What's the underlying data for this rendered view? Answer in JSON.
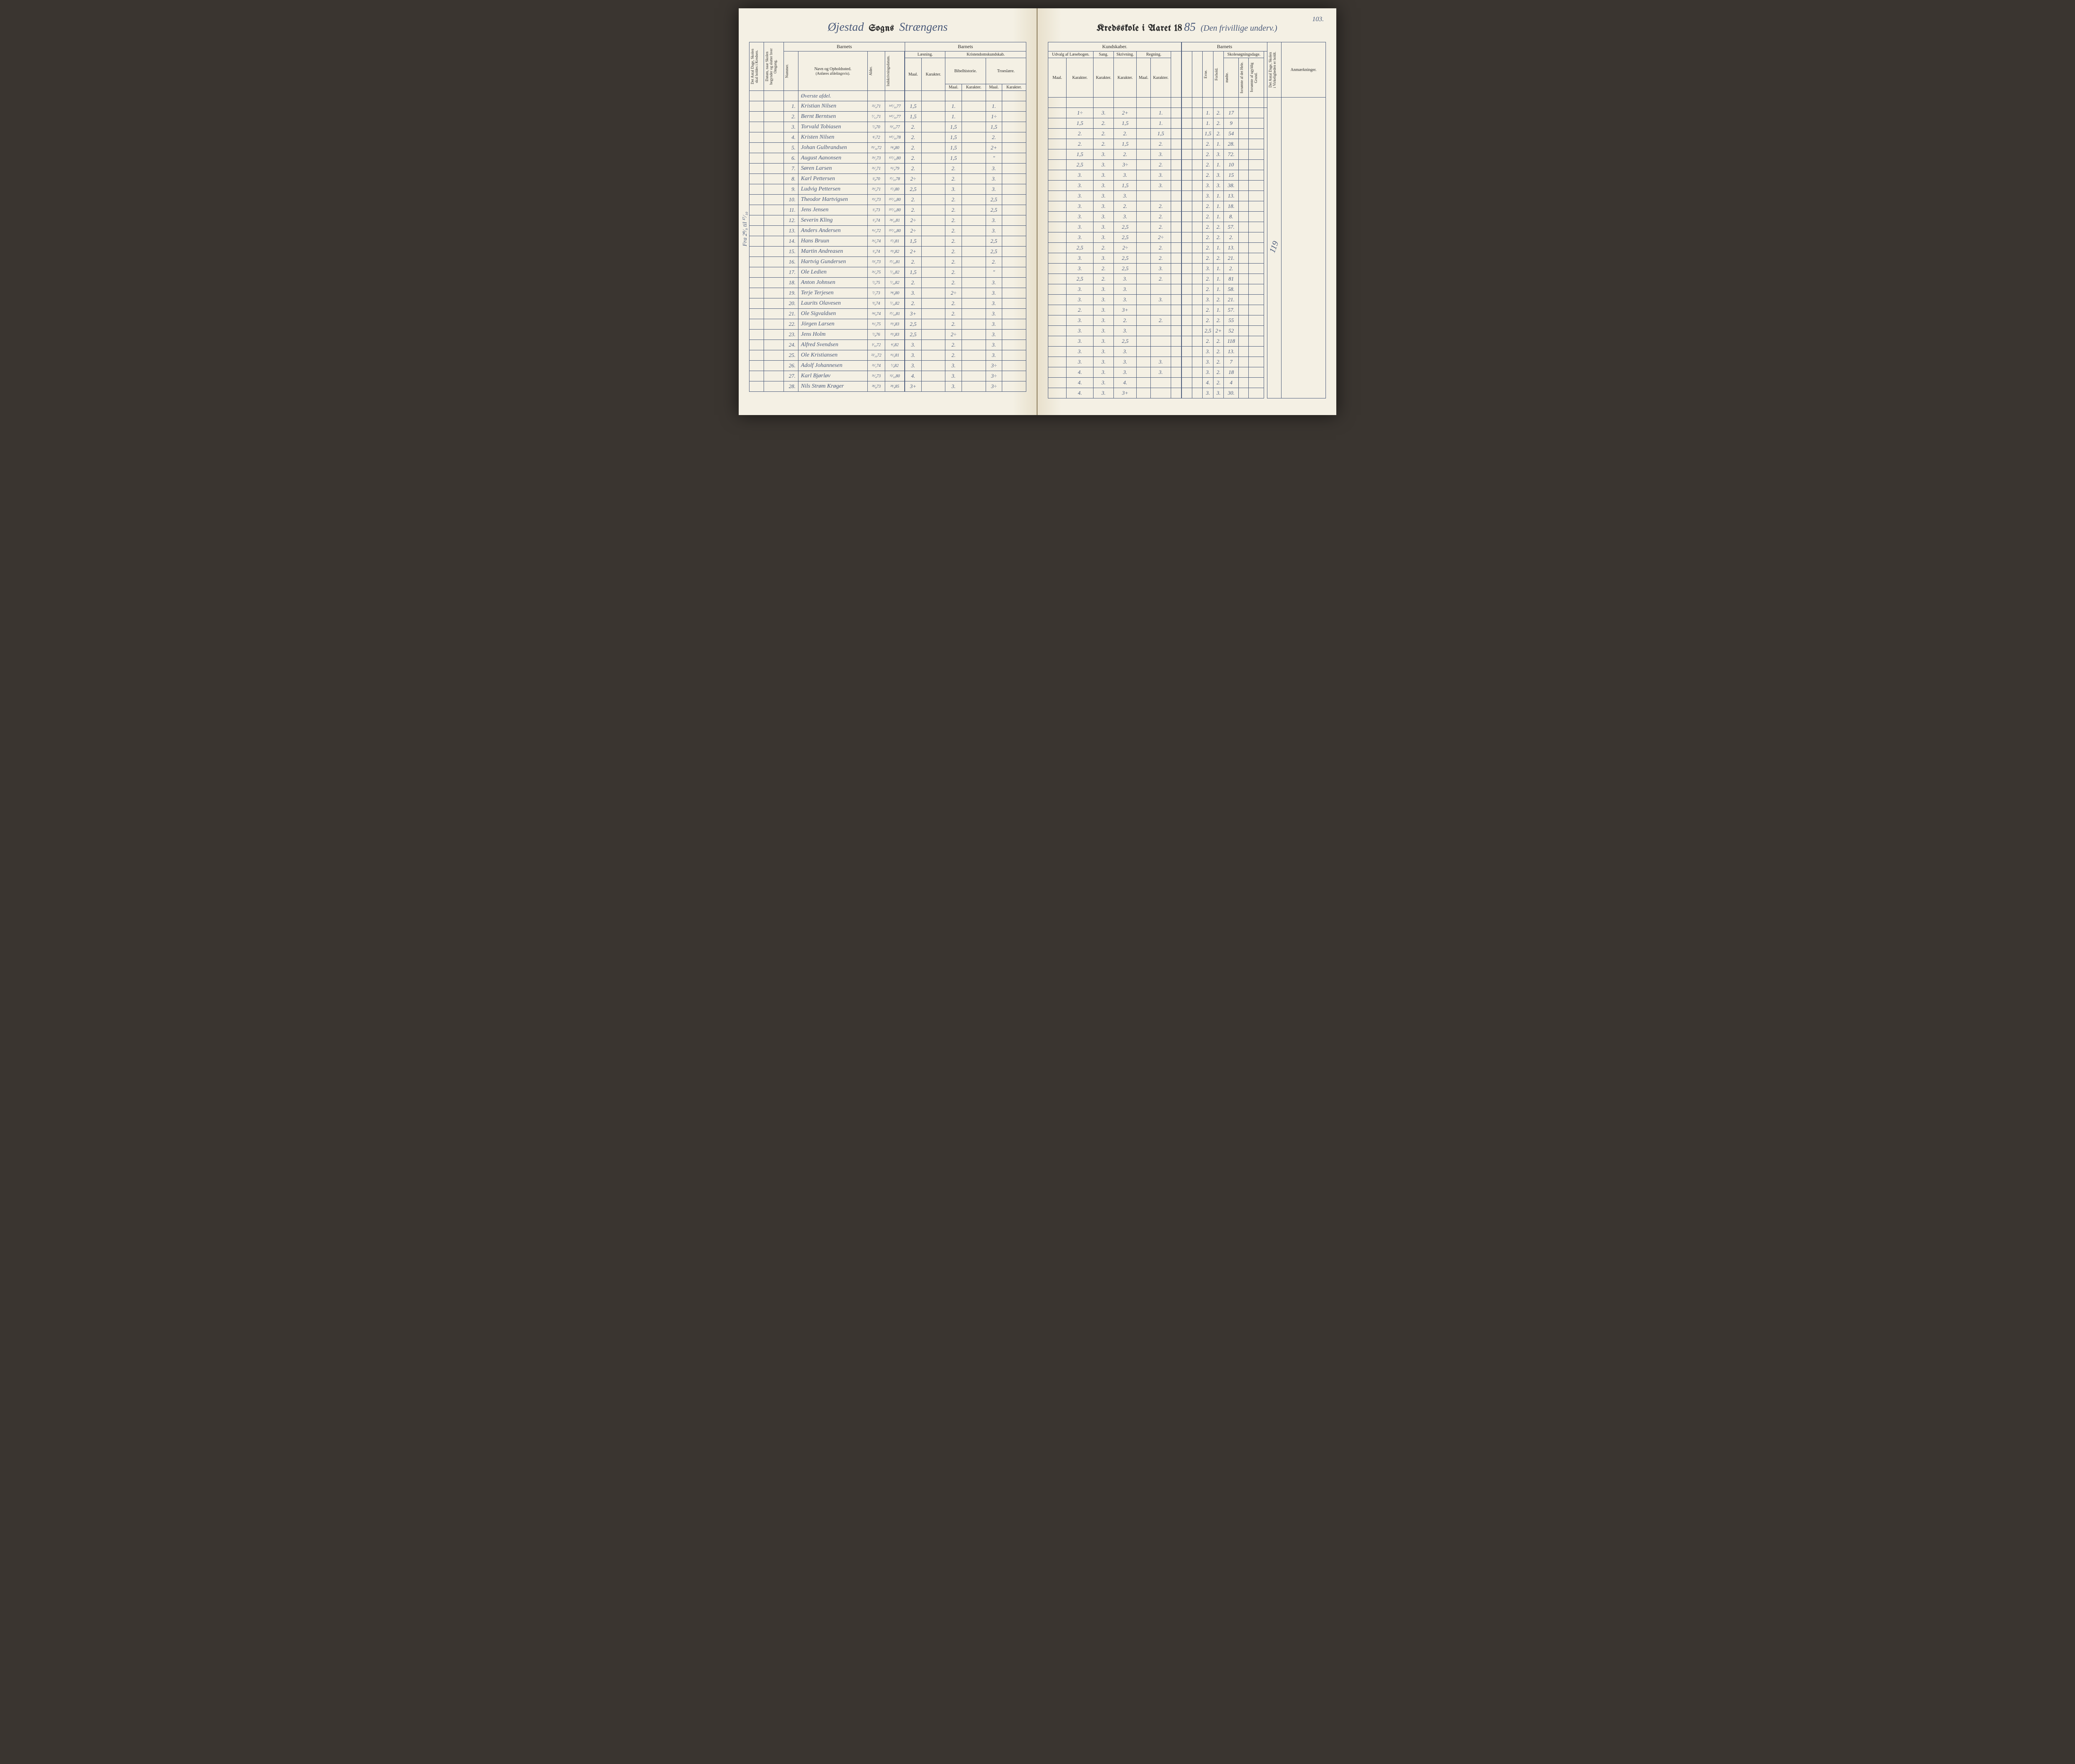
{
  "pageNumber": "103.",
  "left": {
    "titleScript1": "Øjestad",
    "titleBlack": "Sogns",
    "titleScript2": "Strængens",
    "sideNote": "Fra 2⁸⁄₉ til ¹⁷⁄₁₀",
    "headers": {
      "barnets": "Barnets",
      "antalDage": "Det Antal Dage, Skolen skal holdes i Kredsen.",
      "datum": "Datum, naar Skolen begynder og slutter hver Omgang.",
      "nummer": "Nummer.",
      "navn": "Navn og Opholdssted.",
      "navnSub": "(Anføres afdelingsvis).",
      "alder": "Alder.",
      "indskriv": "Indskrivningsdatum.",
      "laesning": "Læsning.",
      "kristendom": "Kristendomskundskab.",
      "bibel": "Bibelhistorie.",
      "troes": "Troeslære.",
      "maal": "Maal.",
      "karakter": "Karakter."
    },
    "sectionLabel": "Øverste afdel.",
    "rows": [
      {
        "n": "1.",
        "name": "Kristian Nilsen",
        "a": "²⁵⁄₄71",
        "i": "¹⁴⁷⁄₁₀77",
        "lm": "1,5",
        "lk": "",
        "bm": "1.",
        "bk": "",
        "tm": "1.",
        "tk": ""
      },
      {
        "n": "2.",
        "name": "Bernt Berntsen",
        "a": "⁷⁄₁₂71",
        "i": "¹⁴⁷⁄₁₀77",
        "lm": "1,5",
        "lk": "",
        "bm": "1.",
        "bk": "",
        "tm": "1÷",
        "tk": ""
      },
      {
        "n": "3.",
        "name": "Torvald Tobiasen",
        "a": "⁷⁄₉70",
        "i": "¹³⁄₁₀77",
        "lm": "2.",
        "lk": "",
        "bm": "1,5",
        "bk": "",
        "tm": "1,5",
        "tk": ""
      },
      {
        "n": "4.",
        "name": "Kristen Nilsen",
        "a": "⁴⁄₇72",
        "i": "¹⁴⁷⁄₁₀78",
        "lm": "2.",
        "lk": "",
        "bm": "1,5",
        "bk": "",
        "tm": "2.",
        "tk": ""
      },
      {
        "n": "5.",
        "name": "Johan Gulbrandsen",
        "a": "²⁹⁄₁₆72",
        "i": "²⁴⁄₈80",
        "lm": "2.",
        "lk": "",
        "bm": "1,5",
        "bk": "",
        "tm": "2+",
        "tk": ""
      },
      {
        "n": "6.",
        "name": "August Aanonsen",
        "a": "²⁹⁄₂73",
        "i": "¹⁵⁷⁄₁₀80",
        "lm": "2.",
        "lk": "",
        "bm": "1,5",
        "bk": "",
        "tm": "\"",
        "tk": ""
      },
      {
        "n": "7.",
        "name": "Søren Larsen",
        "a": "²⁶⁄₂71",
        "i": "¹⁶⁄₄79",
        "lm": "2.",
        "lk": "",
        "bm": "2.",
        "bk": "",
        "tm": "3.",
        "tk": ""
      },
      {
        "n": "8.",
        "name": "Karl Pettersen",
        "a": "²⁄₈70",
        "i": "¹⁷⁄₁₀78",
        "lm": "2÷",
        "lk": "",
        "bm": "2.",
        "bk": "",
        "tm": "3.",
        "tk": ""
      },
      {
        "n": "9.",
        "name": "Ludvig Pettersen",
        "a": "²⁹⁄₄71",
        "i": "¹⁷⁄₅80",
        "lm": "2,5",
        "lk": "",
        "bm": "3.",
        "bk": "",
        "tm": "3.",
        "tk": ""
      },
      {
        "n": "10.",
        "name": "Theodor Hartvigsen",
        "a": "¹⁹⁄₄73",
        "i": "²⁵⁷⁄₁₀80",
        "lm": "2.",
        "lk": "",
        "bm": "2.",
        "bk": "",
        "tm": "2,5",
        "tk": ""
      },
      {
        "n": "11.",
        "name": "Jens Jensen",
        "a": "¹⁄₅73",
        "i": "²⁵⁷⁄₁₀80",
        "lm": "2.",
        "lk": "",
        "bm": "2.",
        "bk": "",
        "tm": "2,5",
        "tk": ""
      },
      {
        "n": "12.",
        "name": "Severin Kling",
        "a": "¹⁄₃74",
        "i": "²⁴⁄₁₀81",
        "lm": "2÷",
        "lk": "",
        "bm": "2.",
        "bk": "",
        "tm": "3.",
        "tk": ""
      },
      {
        "n": "13.",
        "name": "Anders Andersen",
        "a": "¹⁶⁄₃72",
        "i": "²⁵⁷⁄₁₀80",
        "lm": "2÷",
        "lk": "",
        "bm": "2.",
        "bk": "",
        "tm": "3.",
        "tk": ""
      },
      {
        "n": "14.",
        "name": "Hans Bruun",
        "a": "²⁶⁄₆74",
        "i": "¹⁷⁄₅81",
        "lm": "1,5",
        "lk": "",
        "bm": "2.",
        "bk": "",
        "tm": "2,5",
        "tk": ""
      },
      {
        "n": "15.",
        "name": "Martin Andreasen",
        "a": "¹⁄₄74",
        "i": "¹⁹⁄₄82",
        "lm": "2+",
        "lk": "",
        "bm": "2.",
        "bk": "",
        "tm": "2,5",
        "tk": ""
      },
      {
        "n": "16.",
        "name": "Hartvig Gundersen",
        "a": "²³⁄₃73",
        "i": "²⁷⁄₁₀81",
        "lm": "2.",
        "lk": "",
        "bm": "2.",
        "bk": "",
        "tm": "2.",
        "tk": ""
      },
      {
        "n": "17.",
        "name": "Ole Ledien",
        "a": "²⁶⁄₄75",
        "i": "⁷⁄₁₀82",
        "lm": "1,5",
        "lk": "",
        "bm": "2.",
        "bk": "",
        "tm": "\"",
        "tk": ""
      },
      {
        "n": "18.",
        "name": "Anton Johnsen",
        "a": "⁷⁄₆75",
        "i": "⁷⁄₁₀82",
        "lm": "2.",
        "lk": "",
        "bm": "2.",
        "bk": "",
        "tm": "3.",
        "tk": ""
      },
      {
        "n": "19.",
        "name": "Terje Terjesen",
        "a": "⁷⁄₂73",
        "i": "³⁴⁄₈80",
        "lm": "3.",
        "lk": "",
        "bm": "2÷",
        "bk": "",
        "tm": "3.",
        "tk": ""
      },
      {
        "n": "20.",
        "name": "Laurits Olavesen",
        "a": "⁹⁄₆74",
        "i": "⁷⁄₁₀82",
        "lm": "2.",
        "lk": "",
        "bm": "2.",
        "bk": "",
        "tm": "3.",
        "tk": ""
      },
      {
        "n": "21.",
        "name": "Ole Sigvaldsen",
        "a": "²⁴⁄₉74",
        "i": "²⁷⁄₁₀81",
        "lm": "3+",
        "lk": "",
        "bm": "2.",
        "bk": "",
        "tm": "3.",
        "tk": ""
      },
      {
        "n": "22.",
        "name": "Jörgen Larsen",
        "a": "¹⁶⁄₃75",
        "i": "¹⁹⁄₄83",
        "lm": "2,5",
        "lk": "",
        "bm": "2.",
        "bk": "",
        "tm": "3.",
        "tk": ""
      },
      {
        "n": "23.",
        "name": "Jens Holm",
        "a": "⁷⁄₈76",
        "i": "¹⁹⁄₄83",
        "lm": "2,5",
        "lk": "",
        "bm": "2÷",
        "bk": "",
        "tm": "3.",
        "tk": ""
      },
      {
        "n": "24.",
        "name": "Alfred Svendsen",
        "a": "³⁄₁₀72",
        "i": "⁴⁄₃82",
        "lm": "3.",
        "lk": "",
        "bm": "2.",
        "bk": "",
        "tm": "3.",
        "tk": ""
      },
      {
        "n": "25.",
        "name": "Ole Kristiansen",
        "a": "²²⁄₁₀72",
        "i": "¹⁶⁄₆81",
        "lm": "3.",
        "lk": "",
        "bm": "2.",
        "bk": "",
        "tm": "3.",
        "tk": ""
      },
      {
        "n": "26.",
        "name": "Adolf Johannesen",
        "a": "²¹⁄₁74",
        "i": "⁷⁄₄82",
        "lm": "3.",
        "lk": "",
        "bm": "3.",
        "bk": "",
        "tm": "3÷",
        "tk": ""
      },
      {
        "n": "27.",
        "name": "Karl Bjørløv",
        "a": "²⁶⁄₄73",
        "i": "¹²⁄₁₀80",
        "lm": "4.",
        "lk": "",
        "bm": "3.",
        "bk": "",
        "tm": "3÷",
        "tk": ""
      },
      {
        "n": "28.",
        "name": "Nils Strøm Krøger",
        "a": "²⁸⁄₈73",
        "i": "²⁸⁄₄85",
        "lm": "3+",
        "lk": "",
        "bm": "3.",
        "bk": "",
        "tm": "3÷",
        "tk": ""
      }
    ]
  },
  "right": {
    "titleBlack": "Kredsskole i Aaret 18",
    "titleScript1": "85",
    "titleScript2": "(Den frivillige underv.)",
    "headers": {
      "kundskaber": "Kundskaber.",
      "barnets": "Barnets",
      "udvalg": "Udvalg af Læsebogen.",
      "sang": "Sang.",
      "skriv": "Skrivning.",
      "regning": "Regning.",
      "skolesog": "Skolesøgningsdage.",
      "maal": "Maal.",
      "karakter": "Karakter.",
      "evne": "Evne.",
      "forhold": "Forhold.",
      "modte": "mødte.",
      "forsH": "forsømte af det Hele.",
      "forsU": "forsømte af ugyldig Grund.",
      "antalHoldt": "Det Antal Dage, Skolen i Virkeligheden er holdt.",
      "anm": "Anmærkninger."
    },
    "anmNote": "119",
    "rows": [
      {
        "um": "",
        "uk": "1÷",
        "sg": "3.",
        "sk": "2+",
        "rm": "",
        "rk": "1.",
        "ev": "1.",
        "fo": "2.",
        "mo": "17",
        "fh": "",
        "fu": ""
      },
      {
        "um": "",
        "uk": "1,5",
        "sg": "2.",
        "sk": "1,5",
        "rm": "",
        "rk": "1.",
        "ev": "1.",
        "fo": "2.",
        "mo": "9",
        "fh": "",
        "fu": ""
      },
      {
        "um": "",
        "uk": "2.",
        "sg": "2.",
        "sk": "2.",
        "rm": "",
        "rk": "1,5",
        "ev": "1,5",
        "fo": "2.",
        "mo": "54",
        "fh": "",
        "fu": ""
      },
      {
        "um": "",
        "uk": "2.",
        "sg": "2.",
        "sk": "1,5",
        "rm": "",
        "rk": "2.",
        "ev": "2.",
        "fo": "1.",
        "mo": "28.",
        "fh": "",
        "fu": ""
      },
      {
        "um": "",
        "uk": "1,5",
        "sg": "3.",
        "sk": "2.",
        "rm": "",
        "rk": "3.",
        "ev": "2.",
        "fo": "3.",
        "mo": "72.",
        "fh": "",
        "fu": ""
      },
      {
        "um": "",
        "uk": "2,5",
        "sg": "3.",
        "sk": "3÷",
        "rm": "",
        "rk": "2.",
        "ev": "2.",
        "fo": "1.",
        "mo": "10",
        "fh": "",
        "fu": ""
      },
      {
        "um": "",
        "uk": "3.",
        "sg": "3.",
        "sk": "3.",
        "rm": "",
        "rk": "3.",
        "ev": "2.",
        "fo": "3.",
        "mo": "15",
        "fh": "",
        "fu": ""
      },
      {
        "um": "",
        "uk": "3.",
        "sg": "3.",
        "sk": "1,5",
        "rm": "",
        "rk": "3.",
        "ev": "3.",
        "fo": "3.",
        "mo": "38.",
        "fh": "",
        "fu": ""
      },
      {
        "um": "",
        "uk": "3.",
        "sg": "3.",
        "sk": "3.",
        "rm": "",
        "rk": "",
        "ev": "3.",
        "fo": "1.",
        "mo": "13.",
        "fh": "",
        "fu": ""
      },
      {
        "um": "",
        "uk": "3.",
        "sg": "3.",
        "sk": "2.",
        "rm": "",
        "rk": "2.",
        "ev": "2.",
        "fo": "1.",
        "mo": "18.",
        "fh": "",
        "fu": ""
      },
      {
        "um": "",
        "uk": "3.",
        "sg": "3.",
        "sk": "3.",
        "rm": "",
        "rk": "2.",
        "ev": "2.",
        "fo": "1.",
        "mo": "8.",
        "fh": "",
        "fu": ""
      },
      {
        "um": "",
        "uk": "3.",
        "sg": "3.",
        "sk": "2,5",
        "rm": "",
        "rk": "2.",
        "ev": "2.",
        "fo": "2.",
        "mo": "57.",
        "fh": "",
        "fu": ""
      },
      {
        "um": "",
        "uk": "3.",
        "sg": "3.",
        "sk": "2,5",
        "rm": "",
        "rk": "2÷",
        "ev": "2.",
        "fo": "2.",
        "mo": "2.",
        "fh": "",
        "fu": ""
      },
      {
        "um": "",
        "uk": "2,5",
        "sg": "2.",
        "sk": "2÷",
        "rm": "",
        "rk": "2.",
        "ev": "2.",
        "fo": "1.",
        "mo": "13.",
        "fh": "",
        "fu": ""
      },
      {
        "um": "",
        "uk": "3.",
        "sg": "3.",
        "sk": "2,5",
        "rm": "",
        "rk": "2.",
        "ev": "2.",
        "fo": "2.",
        "mo": "21.",
        "fh": "",
        "fu": ""
      },
      {
        "um": "",
        "uk": "3.",
        "sg": "2.",
        "sk": "2,5",
        "rm": "",
        "rk": "3.",
        "ev": "3.",
        "fo": "1.",
        "mo": "2.",
        "fh": "",
        "fu": ""
      },
      {
        "um": "",
        "uk": "2,5",
        "sg": "2.",
        "sk": "3.",
        "rm": "",
        "rk": "2.",
        "ev": "2.",
        "fo": "1.",
        "mo": "81",
        "fh": "",
        "fu": ""
      },
      {
        "um": "",
        "uk": "3.",
        "sg": "3.",
        "sk": "3.",
        "rm": "",
        "rk": "",
        "ev": "2.",
        "fo": "1.",
        "mo": "58.",
        "fh": "",
        "fu": ""
      },
      {
        "um": "",
        "uk": "3.",
        "sg": "3.",
        "sk": "3.",
        "rm": "",
        "rk": "3.",
        "ev": "3.",
        "fo": "2.",
        "mo": "21.",
        "fh": "",
        "fu": ""
      },
      {
        "um": "",
        "uk": "2.",
        "sg": "3.",
        "sk": "3+",
        "rm": "",
        "rk": "",
        "ev": "2.",
        "fo": "1.",
        "mo": "57.",
        "fh": "",
        "fu": ""
      },
      {
        "um": "",
        "uk": "3.",
        "sg": "3.",
        "sk": "2.",
        "rm": "",
        "rk": "2.",
        "ev": "2.",
        "fo": "2.",
        "mo": "55",
        "fh": "",
        "fu": ""
      },
      {
        "um": "",
        "uk": "3.",
        "sg": "3.",
        "sk": "3.",
        "rm": "",
        "rk": "",
        "ev": "2,5",
        "fo": "2+",
        "mo": "52",
        "fh": "",
        "fu": ""
      },
      {
        "um": "",
        "uk": "3.",
        "sg": "3.",
        "sk": "2,5",
        "rm": "",
        "rk": "",
        "ev": "2.",
        "fo": "2.",
        "mo": "118",
        "fh": "",
        "fu": ""
      },
      {
        "um": "",
        "uk": "3.",
        "sg": "3.",
        "sk": "3.",
        "rm": "",
        "rk": "",
        "ev": "3.",
        "fo": "2.",
        "mo": "13.",
        "fh": "",
        "fu": ""
      },
      {
        "um": "",
        "uk": "3.",
        "sg": "3.",
        "sk": "3.",
        "rm": "",
        "rk": "3.",
        "ev": "3.",
        "fo": "2.",
        "mo": "7",
        "fh": "",
        "fu": ""
      },
      {
        "um": "",
        "uk": "4.",
        "sg": "3.",
        "sk": "3.",
        "rm": "",
        "rk": "3.",
        "ev": "3.",
        "fo": "2.",
        "mo": "18",
        "fh": "",
        "fu": ""
      },
      {
        "um": "",
        "uk": "4.",
        "sg": "3.",
        "sk": "4.",
        "rm": "",
        "rk": "",
        "ev": "4.",
        "fo": "2.",
        "mo": "4",
        "fh": "",
        "fu": ""
      },
      {
        "um": "",
        "uk": "4.",
        "sg": "3.",
        "sk": "3+",
        "rm": "",
        "rk": "",
        "ev": "3.",
        "fo": "3.",
        "mo": "30.",
        "fh": "",
        "fu": ""
      }
    ]
  }
}
